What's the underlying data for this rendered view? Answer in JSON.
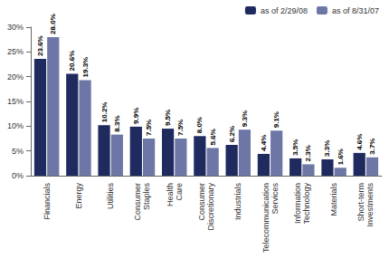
{
  "chart_data": {
    "type": "bar",
    "categories": [
      "Financials",
      "Energy",
      "Utilities",
      "Consumer Staples",
      "Health Care",
      "Consumer Discretionary",
      "Industrials",
      "Telecommunication Services",
      "Information Technology",
      "Materials",
      "Short-term Investments"
    ],
    "series": [
      {
        "name": "as of 2/29/08",
        "color": "#1f2a5e",
        "values": [
          23.6,
          20.6,
          10.2,
          9.9,
          9.5,
          8.0,
          6.2,
          4.4,
          3.5,
          3.3,
          4.6
        ],
        "value_labels": [
          "23.6%",
          "20.6%",
          "10.2%",
          "9.9%",
          "9.5%",
          "8.0%",
          "6.2%",
          "4.4%",
          "3.5%",
          "3.3%",
          "4.6%"
        ]
      },
      {
        "name": "as of 8/31/07",
        "color": "#6e76a6",
        "values": [
          28.0,
          19.3,
          8.3,
          7.5,
          7.5,
          5.6,
          9.3,
          9.1,
          2.3,
          1.6,
          3.7
        ],
        "value_labels": [
          "28.0%",
          "19.3%",
          "8.3%",
          "7.5%",
          "7.5%",
          "5.6%",
          "9.3%",
          "9.1%",
          "2.3%",
          "1.6%",
          "3.7%"
        ]
      }
    ],
    "ylim": [
      0,
      30
    ],
    "yticks": [
      {
        "value": 0,
        "label": "0%"
      },
      {
        "value": 5,
        "label": "5%"
      },
      {
        "value": 10,
        "label": "10%"
      },
      {
        "value": 15,
        "label": "15%"
      },
      {
        "value": 20,
        "label": "20%"
      },
      {
        "value": 25,
        "label": "25%"
      },
      {
        "value": 30,
        "label": "30%"
      }
    ],
    "grid": false,
    "legend": "top-right",
    "data_labels": true
  }
}
